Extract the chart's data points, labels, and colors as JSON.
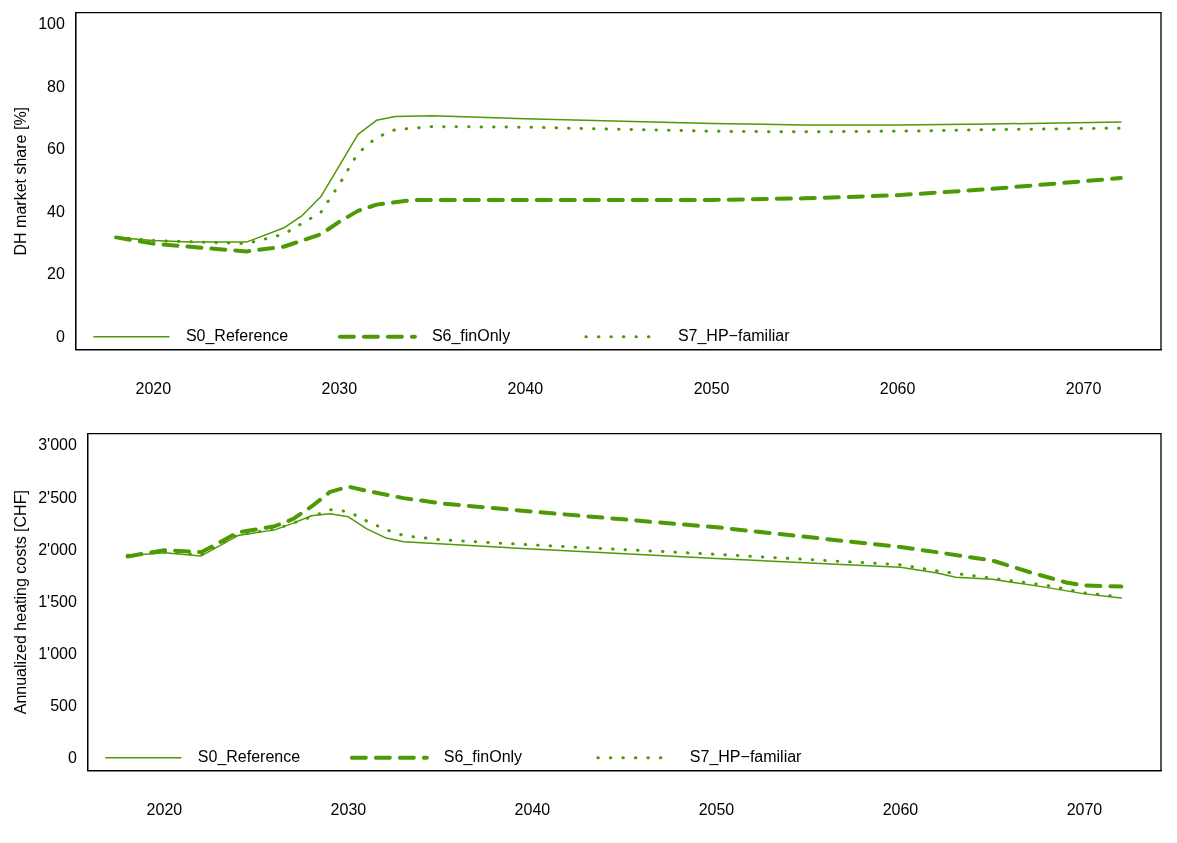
{
  "chart_data": [
    {
      "type": "line",
      "ylabel": "DH market share [%]",
      "xlim": [
        2015.84,
        2074.16
      ],
      "ylim": [
        -4,
        104
      ],
      "xticks": [
        2020,
        2030,
        2040,
        2050,
        2060,
        2070
      ],
      "yticks": [
        0,
        20,
        40,
        60,
        80,
        100
      ],
      "grid": false,
      "legend": "bottom",
      "marker": "none",
      "series": [
        {
          "name": "S0_Reference",
          "color": "#4d9a06",
          "line_style": "solid",
          "x": [
            2018,
            2020,
            2022,
            2025,
            2027,
            2028,
            2029,
            2030,
            2031,
            2032,
            2033,
            2035,
            2040,
            2050,
            2055,
            2060,
            2065,
            2072
          ],
          "values": [
            32,
            31,
            30.5,
            30.5,
            35,
            39,
            45,
            55,
            65,
            69.5,
            70.7,
            71,
            70,
            68.5,
            68,
            68,
            68.3,
            69
          ]
        },
        {
          "name": "S6_finOnly",
          "color": "#4d9a06",
          "line_style": "dashed",
          "x": [
            2018,
            2020,
            2022,
            2025,
            2027,
            2029,
            2030,
            2031,
            2032,
            2034,
            2040,
            2050,
            2055,
            2060,
            2065,
            2072
          ],
          "values": [
            32,
            30,
            29,
            27.5,
            29,
            33,
            37,
            40.5,
            42.5,
            44,
            44,
            44,
            44.5,
            45.5,
            47.5,
            51
          ]
        },
        {
          "name": "S7_HP−familiar",
          "color": "#4d9a06",
          "line_style": "dotted",
          "x": [
            2018,
            2020,
            2025,
            2027,
            2029,
            2030,
            2031,
            2032,
            2033,
            2035,
            2040,
            2050,
            2055,
            2060,
            2065,
            2072
          ],
          "values": [
            32,
            31,
            30,
            33,
            40,
            49,
            59,
            64,
            66.5,
            67.5,
            67.3,
            66,
            65.8,
            66,
            66.5,
            67
          ]
        }
      ]
    },
    {
      "type": "line",
      "ylabel": "Annualized heating costs [CHF]",
      "xlim": [
        2015.84,
        2074.16
      ],
      "ylim": [
        -120,
        3120
      ],
      "xticks": [
        2020,
        2030,
        2040,
        2050,
        2060,
        2070
      ],
      "yticks": [
        0,
        500,
        {
          "value": 1000,
          "label": "1'000"
        },
        {
          "value": 1500,
          "label": "1'500"
        },
        {
          "value": 2000,
          "label": "2'000"
        },
        {
          "value": 2500,
          "label": "2'500"
        },
        {
          "value": 3000,
          "label": "3'000"
        }
      ],
      "grid": false,
      "legend": "bottom",
      "marker": "none",
      "series": [
        {
          "name": "S0_Reference",
          "color": "#4d9a06",
          "line_style": "solid",
          "x": [
            2018,
            2020,
            2022,
            2024,
            2026,
            2027,
            2028,
            2029,
            2030,
            2031,
            2032,
            2033,
            2040,
            2050,
            2060,
            2062,
            2063,
            2065,
            2068,
            2070,
            2072
          ],
          "values": [
            1947,
            1975,
            1945,
            2140,
            2195,
            2260,
            2330,
            2350,
            2320,
            2205,
            2120,
            2080,
            2010,
            1920,
            1835,
            1780,
            1740,
            1720,
            1640,
            1580,
            1540
          ]
        },
        {
          "name": "S6_finOnly",
          "color": "#4d9a06",
          "line_style": "dashed",
          "x": [
            2018,
            2020,
            2022,
            2024,
            2026,
            2027,
            2028,
            2029,
            2030,
            2031,
            2033,
            2035,
            2040,
            2050,
            2060,
            2062,
            2065,
            2067,
            2069,
            2070,
            2072
          ],
          "values": [
            1940,
            2000,
            1980,
            2170,
            2230,
            2300,
            2420,
            2560,
            2610,
            2570,
            2500,
            2450,
            2370,
            2220,
            2030,
            1980,
            1900,
            1790,
            1690,
            1660,
            1650
          ]
        },
        {
          "name": "S7_HP−familiar",
          "color": "#4d9a06",
          "line_style": "dotted",
          "x": [
            2018,
            2020,
            2022,
            2024,
            2026,
            2028,
            2029,
            2030,
            2031,
            2032,
            2033,
            2035,
            2040,
            2050,
            2060,
            2062,
            2065,
            2068,
            2070,
            2072
          ],
          "values": [
            1950,
            1985,
            1955,
            2150,
            2200,
            2320,
            2390,
            2370,
            2280,
            2200,
            2140,
            2100,
            2050,
            1960,
            1860,
            1800,
            1730,
            1660,
            1590,
            1550
          ]
        }
      ]
    }
  ]
}
